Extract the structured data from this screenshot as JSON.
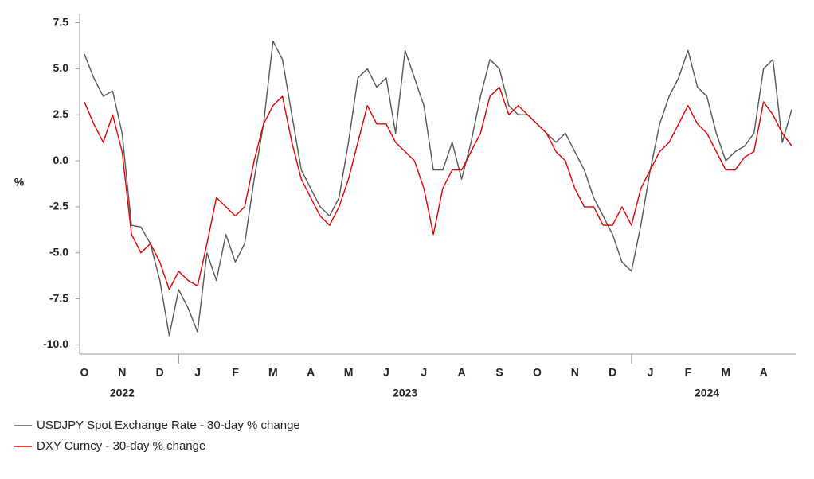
{
  "chart_data": {
    "type": "line",
    "ylabel": "%",
    "ylim": [
      -10.5,
      8
    ],
    "yticks": [
      7.5,
      {
        "value": 5,
        "label": "5.0"
      },
      2.5,
      {
        "value": 0,
        "label": "0.0"
      },
      -2.5,
      {
        "value": -5,
        "label": "-5.0"
      },
      -7.5,
      {
        "value": -10,
        "label": "-10.0"
      }
    ],
    "xticks": [
      {
        "value": "2022-10",
        "label": "O"
      },
      {
        "value": "2022-11",
        "label": "N"
      },
      {
        "value": "2022-12",
        "label": "D"
      },
      {
        "value": "2023-01",
        "label": "J"
      },
      {
        "value": "2023-02",
        "label": "F"
      },
      {
        "value": "2023-03",
        "label": "M"
      },
      {
        "value": "2023-04",
        "label": "A"
      },
      {
        "value": "2023-05",
        "label": "M"
      },
      {
        "value": "2023-06",
        "label": "J"
      },
      {
        "value": "2023-07",
        "label": "J"
      },
      {
        "value": "2023-08",
        "label": "A"
      },
      {
        "value": "2023-09",
        "label": "S"
      },
      {
        "value": "2023-10",
        "label": "O"
      },
      {
        "value": "2023-11",
        "label": "N"
      },
      {
        "value": "2023-12",
        "label": "D"
      },
      {
        "value": "2024-01",
        "label": "J"
      },
      {
        "value": "2024-02",
        "label": "F"
      },
      {
        "value": "2024-03",
        "label": "M"
      },
      {
        "value": "2024-04",
        "label": "A"
      }
    ],
    "years": [
      "2022",
      "2023",
      "2024"
    ],
    "series": [
      {
        "name": "USDJPY Spot Exchange Rate - 30-day % change",
        "color": "#555555",
        "values": [
          5.8,
          4.5,
          3.5,
          3.8,
          1.5,
          -3.5,
          -3.6,
          -4.5,
          -6.5,
          -9.5,
          -7.0,
          -8.0,
          -9.3,
          -5.0,
          -6.5,
          -4.0,
          -5.5,
          -4.5,
          -1.0,
          2.0,
          6.5,
          5.5,
          2.5,
          -0.5,
          -1.5,
          -2.5,
          -3.0,
          -2.0,
          1.0,
          4.5,
          5.0,
          4.0,
          4.5,
          1.5,
          6.0,
          4.5,
          3.0,
          -0.5,
          -0.5,
          1.0,
          -1.0,
          1.0,
          3.5,
          5.5,
          5.0,
          3.0,
          2.5,
          2.5,
          2.0,
          1.5,
          1.0,
          1.5,
          0.5,
          -0.5,
          -2.0,
          -3.0,
          -4.0,
          -5.5,
          -6.0,
          -3.5,
          -0.5,
          2.0,
          3.5,
          4.5,
          6.0,
          4.0,
          3.5,
          1.5,
          0.0,
          0.5,
          0.8,
          1.5,
          5.0,
          5.5,
          1.0,
          2.8
        ]
      },
      {
        "name": "DXY Curncy - 30-day % change",
        "color": "#e00000",
        "values": [
          3.2,
          2.0,
          1.0,
          2.5,
          0.5,
          -4.0,
          -5.0,
          -4.5,
          -5.5,
          -7.0,
          -6.0,
          -6.5,
          -6.8,
          -4.5,
          -2.0,
          -2.5,
          -3.0,
          -2.5,
          0.0,
          2.0,
          3.0,
          3.5,
          1.0,
          -1.0,
          -2.0,
          -3.0,
          -3.5,
          -2.5,
          -1.0,
          1.0,
          3.0,
          2.0,
          2.0,
          1.0,
          0.5,
          0.0,
          -1.5,
          -4.0,
          -1.5,
          -0.5,
          -0.5,
          0.5,
          1.5,
          3.5,
          4.0,
          2.5,
          3.0,
          2.5,
          2.0,
          1.5,
          0.5,
          0.0,
          -1.5,
          -2.5,
          -2.5,
          -3.5,
          -3.5,
          -2.5,
          -3.5,
          -1.5,
          -0.5,
          0.5,
          1.0,
          2.0,
          3.0,
          2.0,
          1.5,
          0.5,
          -0.5,
          -0.5,
          0.2,
          0.5,
          3.2,
          2.5,
          1.5,
          0.8
        ]
      }
    ]
  }
}
